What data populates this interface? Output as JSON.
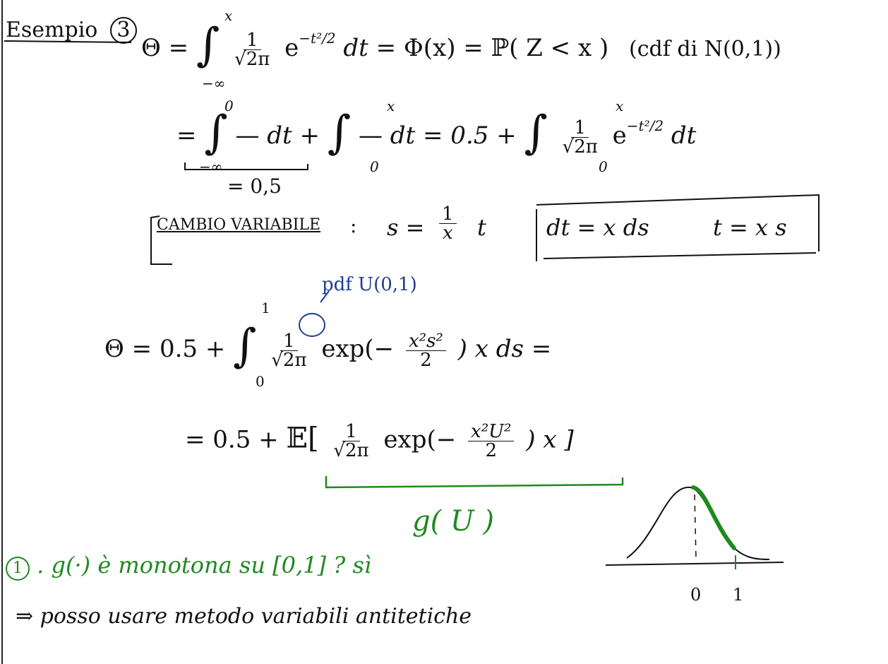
{
  "heading": "Esempio",
  "example_number": "3",
  "line1": {
    "theta": "Θ =",
    "integral_upper": "x",
    "integral_lower": "−∞",
    "frac_num": "1",
    "frac_den": "√2π",
    "exp_part": "e",
    "exponent": "−t²/2",
    "dt": "dt",
    "eq_phi": "= Φ(x) = ℙ( Z < x )",
    "cdf_note": "(cdf di N(0,1))"
  },
  "line2": {
    "eq": "=",
    "int1_upper": "0",
    "int1_lower": "−∞",
    "int1_body": "— dt +",
    "int2_upper": "x",
    "int2_lower": "0",
    "int2_body": "— dt = 0.5 +",
    "int3_upper": "x",
    "int3_lower": "0",
    "frac_num": "1",
    "frac_den": "√2π",
    "exp_part": "e",
    "exponent": "−t²/2",
    "dt": "dt",
    "brace_value": "= 0,5"
  },
  "change_var": {
    "label": "CAMBIO VARIABILE",
    "colon": ":",
    "s_def": "s =",
    "frac_num": "1",
    "frac_den": "x",
    "t": "t",
    "box_dt": "dt = x ds",
    "box_t": "t = x s"
  },
  "pdf_note": "pdf U(0,1)",
  "line3": {
    "theta": "Θ = 0.5 +",
    "upper": "1",
    "lower": "0",
    "frac_num": "1",
    "frac_den": "√2π",
    "exp": "exp(−",
    "inner_num": "x²s²",
    "inner_den": "2",
    "tail": ") x ds ="
  },
  "line4": {
    "eq": "= 0.5 +",
    "expect": "𝔼[",
    "frac_num": "1",
    "frac_den": "√2π",
    "exp": "exp(−",
    "inner_num": "x²U²",
    "inner_den": "2",
    "tail": ") x ]",
    "g_label": "g( U )"
  },
  "note1": {
    "number": "1",
    "text": ". g(·) è monotona su [0,1] ? sì",
    "conclusion": "⇒ posso usare metodo variabili antitetiche"
  },
  "sketch": {
    "tick0": "0",
    "tick1": "1"
  },
  "colors": {
    "ink": "#111111",
    "green": "#1e8a1e",
    "blue": "#1f3e8c"
  }
}
